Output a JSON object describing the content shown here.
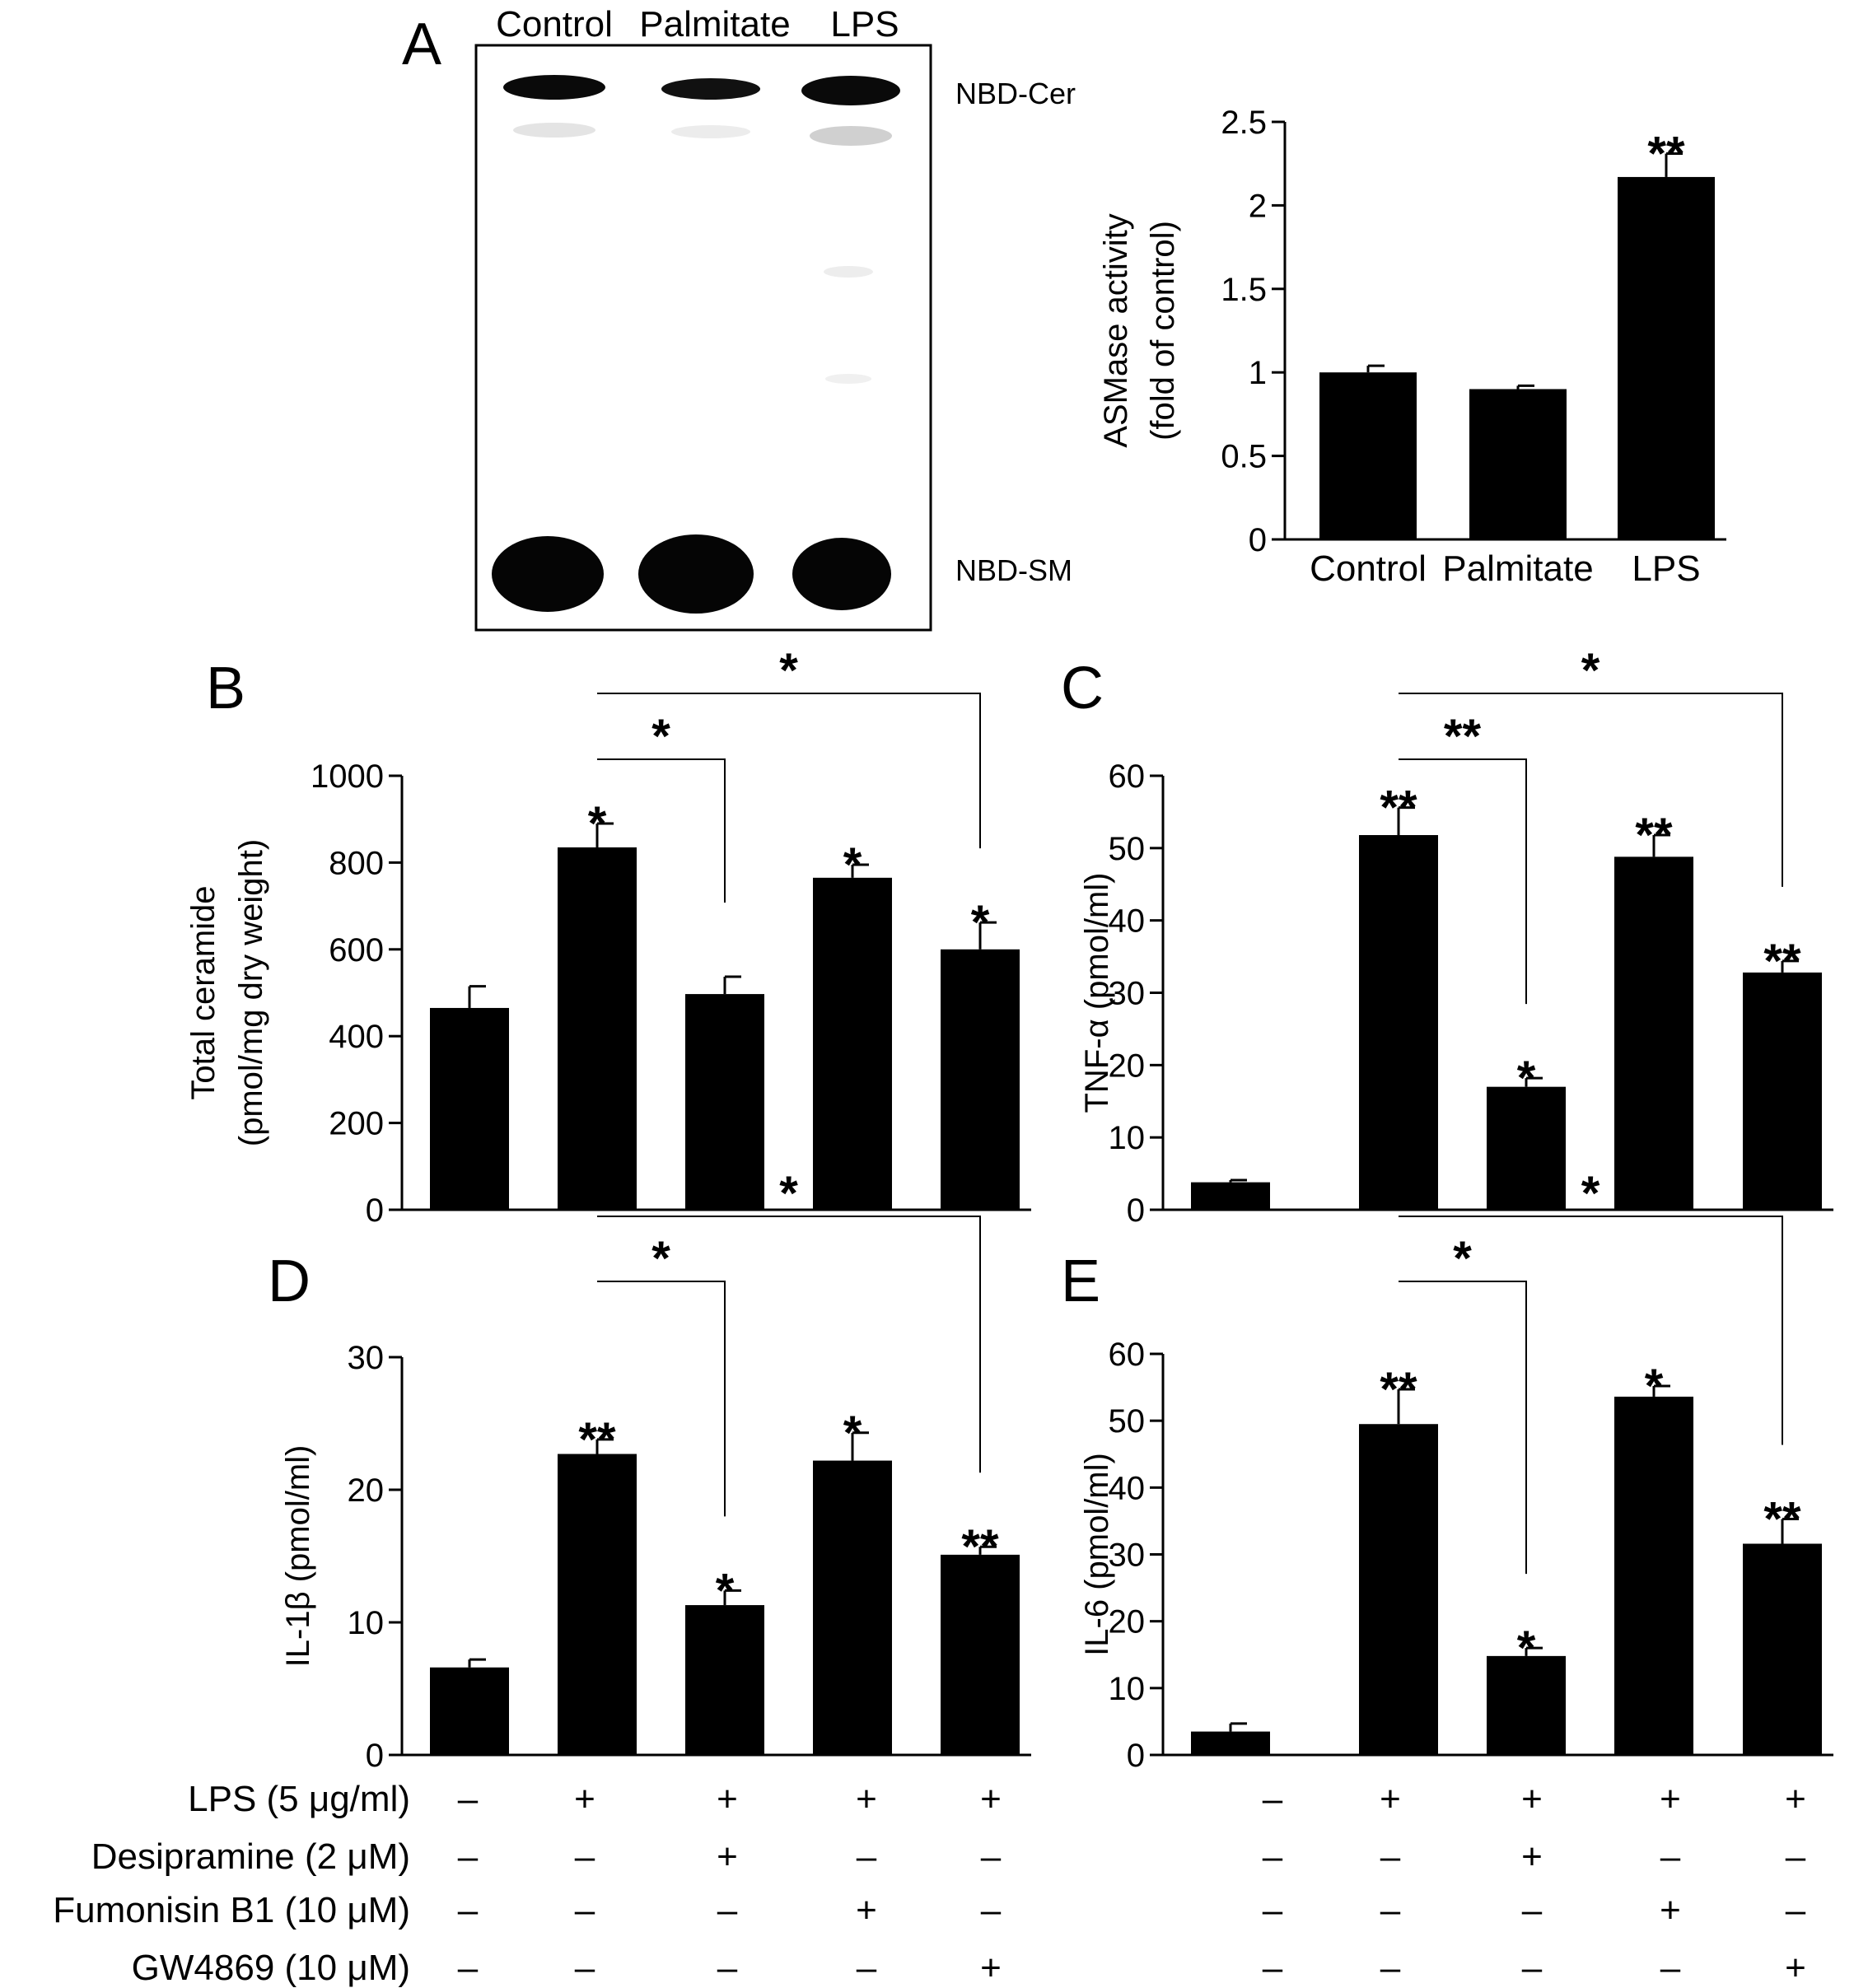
{
  "chart_data": [
    {
      "panel": "A",
      "type": "image",
      "lanes": [
        "Control",
        "Palmitate",
        "LPS"
      ],
      "bands": [
        "NBD-Cer",
        "NBD-SM"
      ]
    },
    {
      "panel": "",
      "type": "bar",
      "categories": [
        "Control",
        "Palmitate",
        "LPS"
      ],
      "values": [
        1.0,
        0.9,
        2.17
      ],
      "errors": [
        0.04,
        0.02,
        0.14
      ],
      "significance": [
        "",
        "",
        "**"
      ],
      "ylabel": [
        "ASMase activity",
        "(fold of control)"
      ],
      "ylim": [
        0,
        2.5
      ],
      "yticks": [
        0,
        0.5,
        1,
        1.5,
        2,
        2.5
      ],
      "ytick_labels": [
        "0",
        "0.5",
        "1",
        "1.5",
        "2",
        "2.5"
      ]
    },
    {
      "panel": "B",
      "type": "bar",
      "values": [
        465,
        835,
        497,
        765,
        600
      ],
      "errors": [
        50,
        55,
        40,
        30,
        62
      ],
      "significance": [
        "",
        "*",
        "",
        "*",
        "*"
      ],
      "comparisons": [
        {
          "from": 1,
          "to": 2,
          "label": "*"
        },
        {
          "from": 1,
          "to": 4,
          "label": "*"
        }
      ],
      "ylabel": [
        "Total ceramide",
        "(pmol/mg dry weight)"
      ],
      "ylim": [
        0,
        1000
      ],
      "yticks": [
        0,
        200,
        400,
        600,
        800,
        1000
      ],
      "ytick_labels": [
        "0",
        "200",
        "400",
        "600",
        "800",
        "1000"
      ]
    },
    {
      "panel": "C",
      "type": "bar",
      "values": [
        3.8,
        51.8,
        17.0,
        48.8,
        32.8
      ],
      "errors": [
        0.3,
        3.8,
        1.2,
        3.0,
        1.6
      ],
      "significance": [
        "",
        "**",
        "*",
        "**",
        "**"
      ],
      "comparisons": [
        {
          "from": 1,
          "to": 2,
          "label": "**"
        },
        {
          "from": 1,
          "to": 4,
          "label": "*"
        }
      ],
      "ylabel": [
        "TNF-α (pmol/ml)"
      ],
      "ylim": [
        0,
        60
      ],
      "yticks": [
        0,
        10,
        20,
        30,
        40,
        50,
        60
      ],
      "ytick_labels": [
        "0",
        "10",
        "20",
        "30",
        "40",
        "50",
        "60"
      ]
    },
    {
      "panel": "D",
      "type": "bar",
      "values": [
        6.6,
        22.7,
        11.3,
        22.2,
        15.1
      ],
      "errors": [
        0.6,
        1.1,
        1.1,
        2.1,
        0.6
      ],
      "significance": [
        "",
        "**",
        "*",
        "*",
        "**"
      ],
      "comparisons": [
        {
          "from": 1,
          "to": 2,
          "label": "*"
        },
        {
          "from": 1,
          "to": 4,
          "label": "*"
        }
      ],
      "ylabel": [
        "IL-1β (pmol/ml)"
      ],
      "ylim": [
        0,
        30
      ],
      "yticks": [
        0,
        10,
        20,
        30
      ],
      "ytick_labels": [
        "0",
        "10",
        "20",
        "30"
      ]
    },
    {
      "panel": "E",
      "type": "bar",
      "values": [
        3.5,
        49.5,
        14.8,
        53.6,
        31.6
      ],
      "errors": [
        1.2,
        5.2,
        1.2,
        1.6,
        3.7
      ],
      "significance": [
        "",
        "**",
        "*",
        "*",
        "**"
      ],
      "comparisons": [
        {
          "from": 1,
          "to": 2,
          "label": "*"
        },
        {
          "from": 1,
          "to": 4,
          "label": "*"
        }
      ],
      "ylabel": [
        "IL-6 (pmol/ml)"
      ],
      "ylim": [
        0,
        60
      ],
      "yticks": [
        0,
        10,
        20,
        30,
        40,
        50,
        60
      ],
      "ytick_labels": [
        "0",
        "10",
        "20",
        "30",
        "40",
        "50",
        "60"
      ]
    }
  ],
  "treatments": {
    "rows": [
      {
        "label": "LPS (5 μg/ml)",
        "signs": [
          "–",
          "+",
          "+",
          "+",
          "+"
        ]
      },
      {
        "label": "Desipramine (2 μM)",
        "signs": [
          "–",
          "–",
          "+",
          "–",
          "–"
        ]
      },
      {
        "label": "Fumonisin B1 (10 μM)",
        "signs": [
          "–",
          "–",
          "–",
          "+",
          "–"
        ]
      },
      {
        "label": "GW4869 (10 μM)",
        "signs": [
          "–",
          "–",
          "–",
          "–",
          "+"
        ]
      }
    ]
  }
}
